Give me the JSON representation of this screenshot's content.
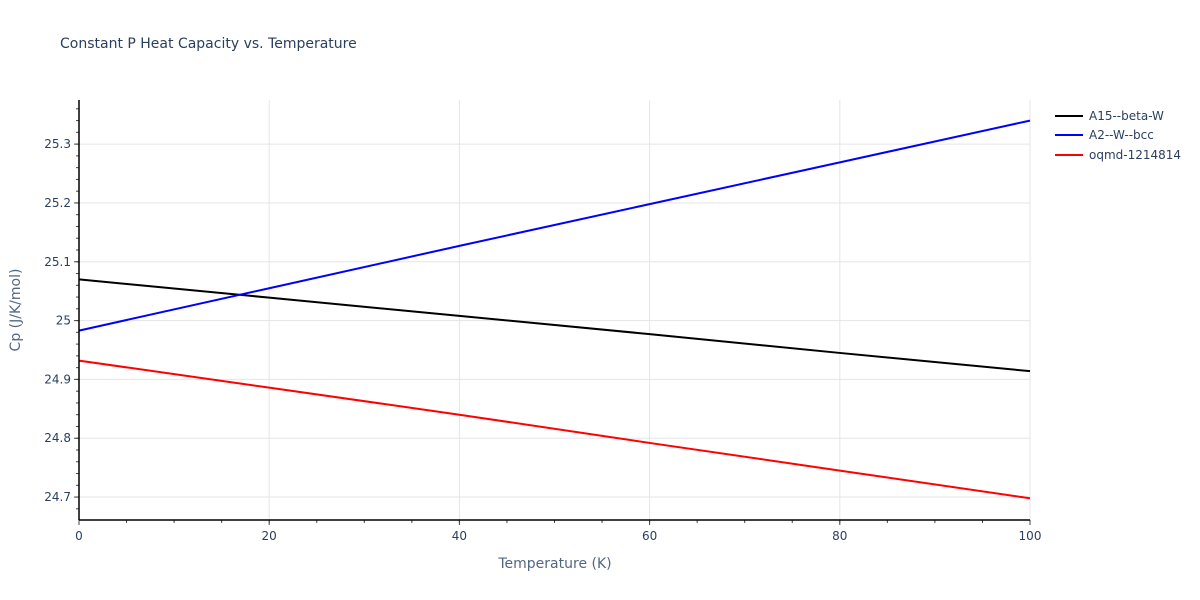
{
  "title": "Constant P Heat Capacity vs. Temperature",
  "legend": {
    "items": [
      {
        "label": "A15--beta-W",
        "color": "#000000"
      },
      {
        "label": "A2--W--bcc",
        "color": "#0000ff"
      },
      {
        "label": "oqmd-1214814",
        "color": "#ff0000"
      }
    ]
  },
  "axes": {
    "x": {
      "title": "Temperature (K)",
      "ticks": [
        "0",
        "20",
        "40",
        "60",
        "80",
        "100"
      ]
    },
    "y": {
      "title": "Cp (J/K/mol)",
      "ticks": [
        "24.7",
        "24.8",
        "24.9",
        "25",
        "25.1",
        "25.2",
        "25.3"
      ]
    }
  },
  "chart_data": {
    "type": "line",
    "title": "Constant P Heat Capacity vs. Temperature",
    "xlabel": "Temperature (K)",
    "ylabel": "Cp (J/K/mol)",
    "xlim": [
      0,
      100
    ],
    "ylim": [
      24.661,
      25.375
    ],
    "grid": true,
    "legend_position": "right-top",
    "x": [
      0,
      20,
      40,
      60,
      80,
      100
    ],
    "series": [
      {
        "name": "A15--beta-W",
        "color": "#000000",
        "values": [
          25.07,
          25.039,
          25.008,
          24.977,
          24.945,
          24.914
        ]
      },
      {
        "name": "A2--W--bcc",
        "color": "#0000ff",
        "values": [
          24.983,
          25.055,
          25.127,
          25.198,
          25.269,
          25.34
        ]
      },
      {
        "name": "oqmd-1214814",
        "color": "#ff0000",
        "values": [
          24.932,
          24.886,
          24.84,
          24.792,
          24.745,
          24.698
        ]
      }
    ]
  }
}
